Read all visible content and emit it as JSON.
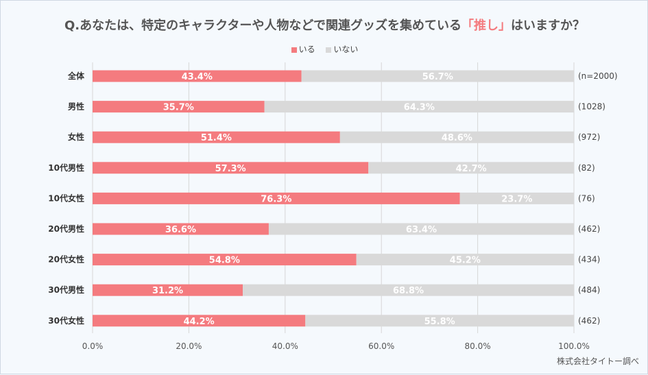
{
  "title": {
    "prefix": "Q.あなたは、特定のキャラクターや人物などで関連グッズを集めている",
    "highlight": "「推し」",
    "suffix": "はいますか？"
  },
  "source": "株式会社タイトー調べ",
  "colors": {
    "yes": "#f47b7f",
    "no": "#d9d9d9",
    "grid": "#d6d6d6",
    "highlight": "#f47b7f"
  },
  "chart_data": {
    "type": "bar",
    "orientation": "horizontal",
    "stacked": true,
    "categories": [
      "全体",
      "男性",
      "女性",
      "10代男性",
      "10代女性",
      "20代男性",
      "20代女性",
      "30代男性",
      "30代女性"
    ],
    "series": [
      {
        "name": "いる",
        "values": [
          43.4,
          35.7,
          51.4,
          57.3,
          76.3,
          36.6,
          54.8,
          31.2,
          44.2
        ]
      },
      {
        "name": "いない",
        "values": [
          56.7,
          64.3,
          48.6,
          42.7,
          23.7,
          63.4,
          45.2,
          68.8,
          55.8
        ]
      }
    ],
    "value_labels": [
      [
        "43.4%",
        "35.7%",
        "51.4%",
        "57.3%",
        "76.3%",
        "36.6%",
        "54.8%",
        "31.2%",
        "44.2%"
      ],
      [
        "56.7%",
        "64.3%",
        "48.6%",
        "42.7%",
        "23.7%",
        "63.4%",
        "45.2%",
        "68.8%",
        "55.8%"
      ]
    ],
    "sample_sizes": [
      "(n=2000)",
      "(1028)",
      "(972)",
      "(82)",
      "(76)",
      "(462)",
      "(434)",
      "(484)",
      "(462)"
    ],
    "x_ticks": [
      "0.0%",
      "20.0%",
      "40.0%",
      "60.0%",
      "80.0%",
      "100.0%"
    ],
    "xlim": [
      0,
      100
    ],
    "grid": true,
    "legend_position": "top-center"
  }
}
